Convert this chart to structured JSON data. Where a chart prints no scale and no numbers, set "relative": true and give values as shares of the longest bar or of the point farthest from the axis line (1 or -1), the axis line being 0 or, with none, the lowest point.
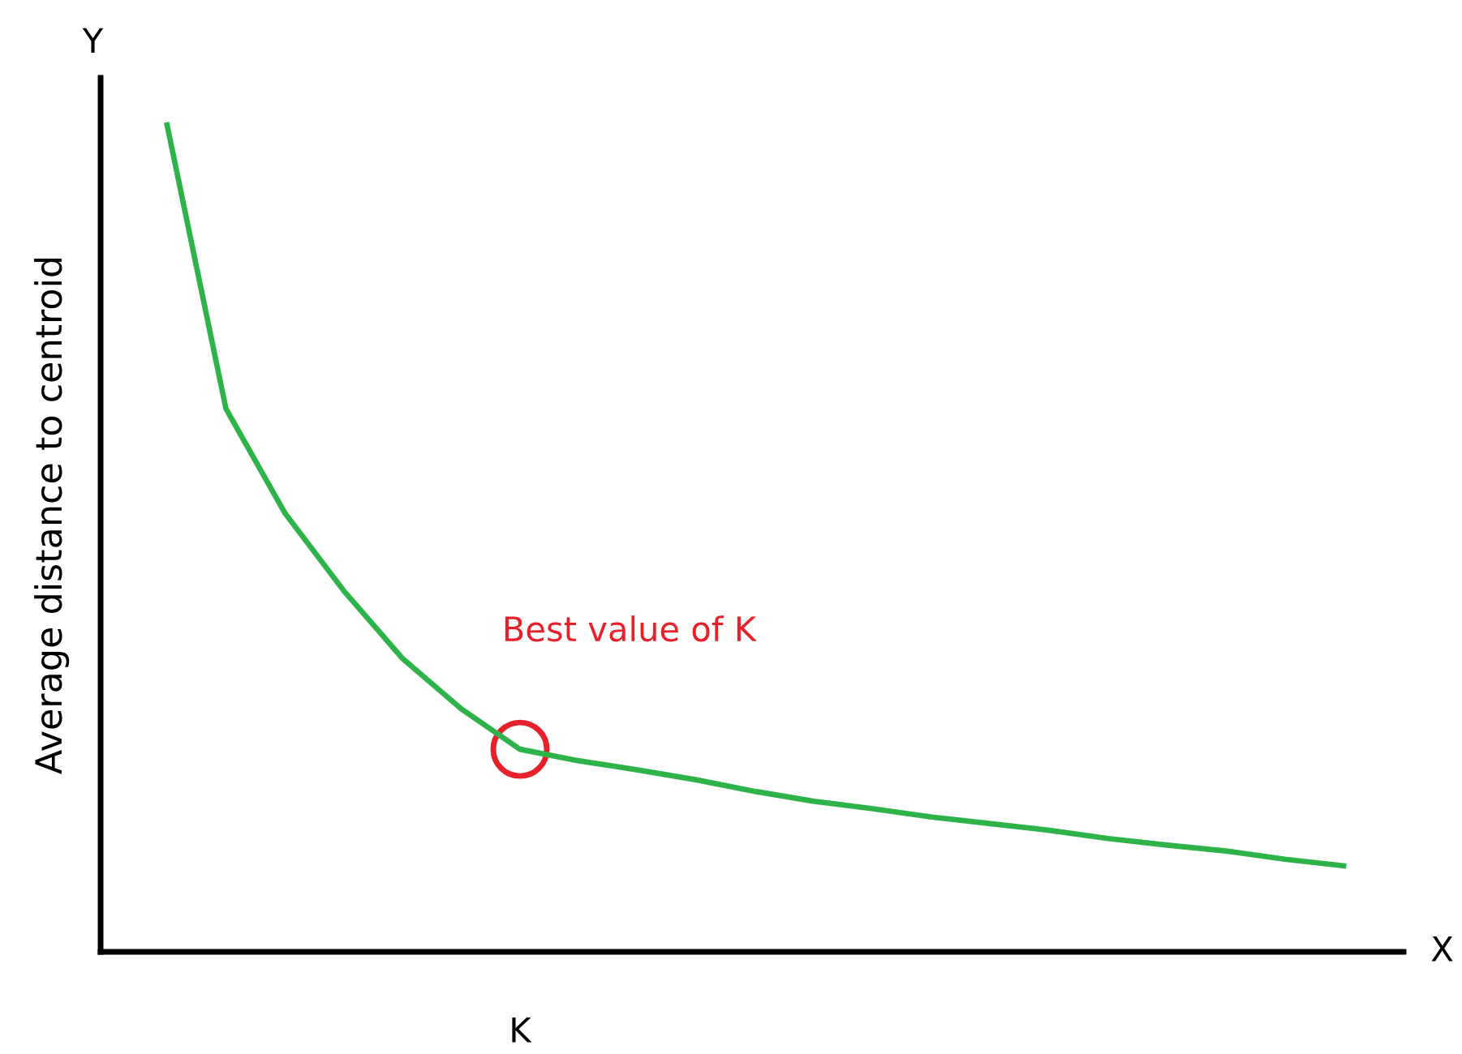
{
  "chart_data": {
    "type": "line",
    "relative": true,
    "ylabel": "Average distance to centroid",
    "categories": [
      null,
      null,
      null,
      null,
      null,
      null,
      null,
      null,
      null,
      null,
      null,
      null,
      null,
      null,
      null,
      null,
      null,
      null,
      null,
      null,
      null
    ],
    "series": [
      {
        "color": "#2eb34a",
        "values": [
          1,
          0.657,
          0.531,
          0.437,
          0.355,
          0.294,
          0.245,
          0.231,
          0.22,
          0.208,
          0.194,
          0.182,
          0.173,
          0.163,
          0.155,
          0.147,
          0.137,
          0.129,
          0.122,
          0.112,
          0.104
        ]
      }
    ],
    "annotations": [
      "Best value of K",
      "K",
      "Y",
      "X"
    ],
    "legend": false,
    "marker": "none",
    "line_style": "solid"
  }
}
